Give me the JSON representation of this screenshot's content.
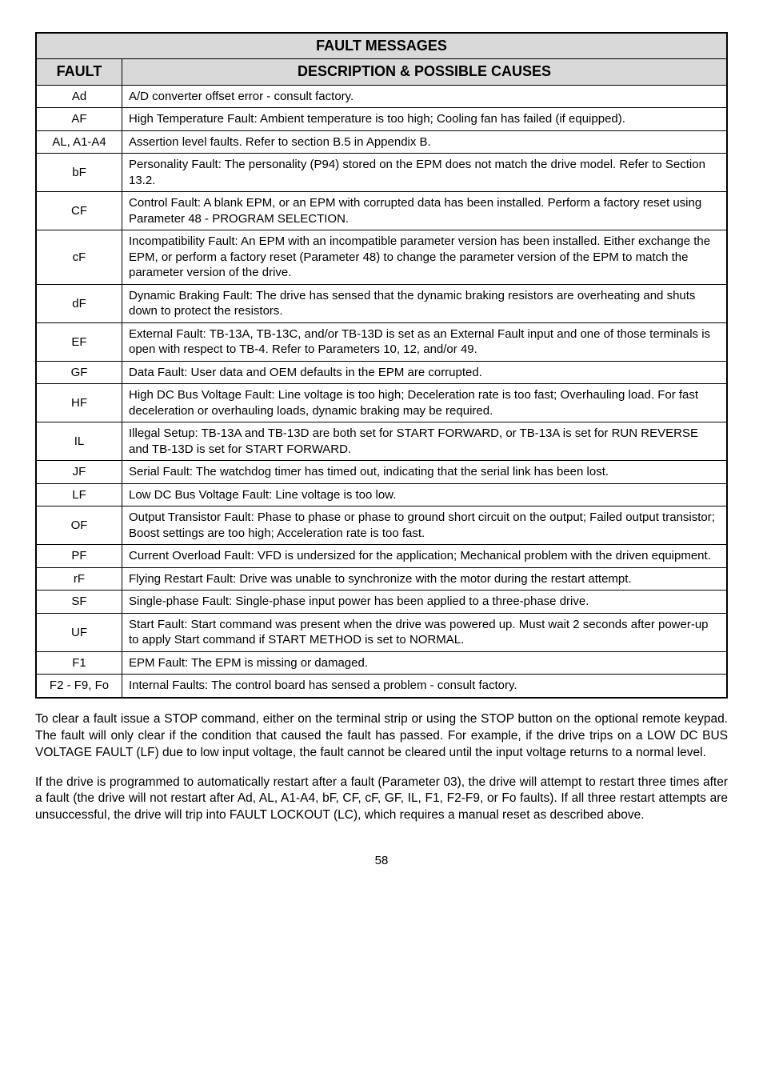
{
  "table": {
    "title": "FAULT MESSAGES",
    "col1": "FAULT",
    "col2": "DESCRIPTION & POSSIBLE CAUSES",
    "rows": [
      {
        "code": "Ad",
        "desc": "A/D converter offset error - consult factory."
      },
      {
        "code": "AF",
        "desc": "High Temperature Fault: Ambient temperature is too high; Cooling fan has failed (if equipped)."
      },
      {
        "code": "AL, A1-A4",
        "desc": "Assertion level faults. Refer to section B.5 in Appendix B."
      },
      {
        "code": "bF",
        "desc": "Personality Fault: The personality (P94) stored on the EPM does not match the drive model. Refer to Section 13.2."
      },
      {
        "code": "CF",
        "desc": "Control Fault: A blank EPM, or an EPM with corrupted data has been installed. Perform a factory reset using Parameter 48 - PROGRAM SELECTION."
      },
      {
        "code": "cF",
        "desc": "Incompatibility Fault: An EPM with an incompatible parameter version has been installed. Either exchange the EPM, or perform a factory reset (Parameter 48) to change the parameter version of the EPM to match the parameter version of the drive."
      },
      {
        "code": "dF",
        "desc": "Dynamic Braking Fault: The drive has sensed that the dynamic braking resistors are overheating and shuts down to protect the resistors."
      },
      {
        "code": "EF",
        "desc": "External Fault: TB-13A, TB-13C, and/or TB-13D is set as an External Fault input and one of those terminals is open with respect to TB-4. Refer to Parameters 10, 12, and/or 49."
      },
      {
        "code": "GF",
        "desc": "Data Fault: User data and OEM defaults in the EPM are corrupted."
      },
      {
        "code": "HF",
        "desc": "High DC Bus Voltage Fault: Line voltage is too high;  Deceleration rate is too fast; Overhauling load. For fast deceleration or overhauling loads, dynamic braking may be required."
      },
      {
        "code": "IL",
        "desc": "Illegal Setup: TB-13A and TB-13D are both set for START FORWARD, or TB-13A is set for RUN REVERSE and TB-13D is set for START FORWARD."
      },
      {
        "code": "JF",
        "desc": "Serial Fault: The watchdog timer has timed out, indicating that the serial link has been lost."
      },
      {
        "code": "LF",
        "desc": "Low DC Bus Voltage Fault: Line voltage is too low."
      },
      {
        "code": "OF",
        "desc": "Output Transistor Fault: Phase to phase or phase to ground short circuit on the output; Failed output transistor; Boost settings are too high; Acceleration rate is too fast."
      },
      {
        "code": "PF",
        "desc": "Current Overload Fault: VFD is undersized for the application; Mechanical problem with the driven equipment."
      },
      {
        "code": "rF",
        "desc": "Flying Restart Fault: Drive was unable to synchronize with the motor during the restart attempt."
      },
      {
        "code": "SF",
        "desc": "Single-phase Fault: Single-phase input power has been applied to a three-phase drive."
      },
      {
        "code": "UF",
        "desc": "Start Fault: Start command was present when the drive was powered up. Must wait 2 seconds after power-up to apply Start command if START METHOD is set to NORMAL."
      },
      {
        "code": "F1",
        "desc": "EPM Fault: The EPM is missing or damaged."
      },
      {
        "code": "F2 - F9, Fo",
        "desc": "Internal Faults: The control board has sensed a problem - consult factory."
      }
    ]
  },
  "paragraphs": {
    "p1": "To clear a fault issue a STOP command, either on the terminal strip or using the STOP button on the optional remote keypad. The fault will only clear if the condition that caused the fault has passed. For example, if the drive trips on a LOW DC BUS VOLTAGE FAULT (LF) due to low input voltage, the fault cannot be cleared until the input voltage returns to a normal level.",
    "p2": "If the drive is programmed to automatically restart after a fault (Parameter 03), the drive will attempt to restart three times after a fault (the drive will not restart after Ad, AL, A1-A4, bF, CF, cF, GF, IL, F1, F2-F9, or Fo faults). If all three restart attempts are unsuccessful, the drive will trip into FAULT LOCKOUT (LC), which requires a manual reset as described above."
  },
  "page_number": "58"
}
